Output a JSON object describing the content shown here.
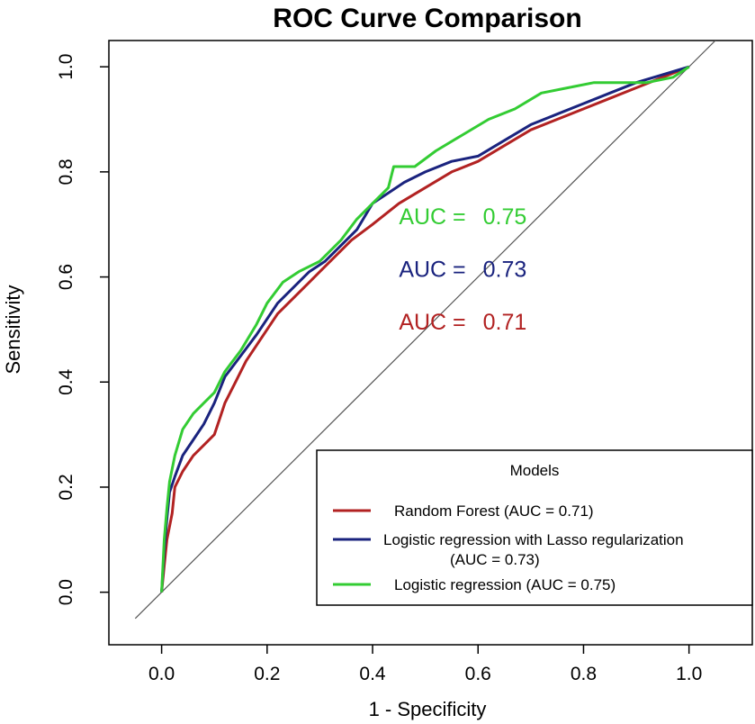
{
  "chart_data": {
    "type": "line",
    "title": "ROC Curve Comparison",
    "xlabel": "1 - Specificity",
    "ylabel": "Sensitivity",
    "xlim": [
      -0.1,
      1.12
    ],
    "ylim": [
      -0.1,
      1.05
    ],
    "xticks": [
      0.0,
      0.2,
      0.4,
      0.6,
      0.8,
      1.0
    ],
    "xtick_labels": [
      "0.0",
      "0.2",
      "0.4",
      "0.6",
      "0.8",
      "1.0"
    ],
    "yticks": [
      0.0,
      0.2,
      0.4,
      0.6,
      0.8,
      1.0
    ],
    "ytick_labels": [
      "0.0",
      "0.2",
      "0.4",
      "0.6",
      "0.8",
      "1.0"
    ],
    "grid": false,
    "reference_line": {
      "from": [
        0,
        0
      ],
      "to": [
        1,
        1
      ],
      "color": "#555555"
    },
    "series": [
      {
        "name": "Random Forest",
        "color": "#b22222",
        "points": [
          [
            0.0,
            0.0
          ],
          [
            0.005,
            0.05
          ],
          [
            0.01,
            0.1
          ],
          [
            0.02,
            0.15
          ],
          [
            0.025,
            0.2
          ],
          [
            0.04,
            0.23
          ],
          [
            0.06,
            0.26
          ],
          [
            0.08,
            0.28
          ],
          [
            0.1,
            0.3
          ],
          [
            0.11,
            0.33
          ],
          [
            0.12,
            0.36
          ],
          [
            0.14,
            0.4
          ],
          [
            0.16,
            0.44
          ],
          [
            0.18,
            0.47
          ],
          [
            0.2,
            0.5
          ],
          [
            0.22,
            0.53
          ],
          [
            0.25,
            0.56
          ],
          [
            0.28,
            0.59
          ],
          [
            0.3,
            0.61
          ],
          [
            0.33,
            0.64
          ],
          [
            0.36,
            0.67
          ],
          [
            0.4,
            0.7
          ],
          [
            0.45,
            0.74
          ],
          [
            0.5,
            0.77
          ],
          [
            0.55,
            0.8
          ],
          [
            0.6,
            0.82
          ],
          [
            0.65,
            0.85
          ],
          [
            0.7,
            0.88
          ],
          [
            0.75,
            0.9
          ],
          [
            0.8,
            0.92
          ],
          [
            0.85,
            0.94
          ],
          [
            0.9,
            0.96
          ],
          [
            0.95,
            0.98
          ],
          [
            1.0,
            1.0
          ]
        ]
      },
      {
        "name": "Logistic regression with Lasso regularization",
        "color": "#1a237e",
        "points": [
          [
            0.0,
            0.0
          ],
          [
            0.005,
            0.08
          ],
          [
            0.01,
            0.14
          ],
          [
            0.015,
            0.19
          ],
          [
            0.025,
            0.22
          ],
          [
            0.04,
            0.26
          ],
          [
            0.06,
            0.29
          ],
          [
            0.08,
            0.32
          ],
          [
            0.1,
            0.36
          ],
          [
            0.12,
            0.41
          ],
          [
            0.15,
            0.45
          ],
          [
            0.18,
            0.49
          ],
          [
            0.2,
            0.52
          ],
          [
            0.22,
            0.55
          ],
          [
            0.25,
            0.58
          ],
          [
            0.28,
            0.61
          ],
          [
            0.31,
            0.63
          ],
          [
            0.34,
            0.66
          ],
          [
            0.37,
            0.69
          ],
          [
            0.4,
            0.74
          ],
          [
            0.43,
            0.76
          ],
          [
            0.46,
            0.78
          ],
          [
            0.5,
            0.8
          ],
          [
            0.55,
            0.82
          ],
          [
            0.6,
            0.83
          ],
          [
            0.65,
            0.86
          ],
          [
            0.7,
            0.89
          ],
          [
            0.75,
            0.91
          ],
          [
            0.8,
            0.93
          ],
          [
            0.85,
            0.95
          ],
          [
            0.9,
            0.97
          ],
          [
            0.95,
            0.985
          ],
          [
            1.0,
            1.0
          ]
        ]
      },
      {
        "name": "Logistic regression",
        "color": "#33cc33",
        "points": [
          [
            0.0,
            0.0
          ],
          [
            0.005,
            0.1
          ],
          [
            0.01,
            0.16
          ],
          [
            0.015,
            0.21
          ],
          [
            0.025,
            0.26
          ],
          [
            0.04,
            0.31
          ],
          [
            0.06,
            0.34
          ],
          [
            0.08,
            0.36
          ],
          [
            0.1,
            0.38
          ],
          [
            0.12,
            0.42
          ],
          [
            0.15,
            0.46
          ],
          [
            0.18,
            0.51
          ],
          [
            0.2,
            0.55
          ],
          [
            0.23,
            0.59
          ],
          [
            0.26,
            0.61
          ],
          [
            0.3,
            0.63
          ],
          [
            0.34,
            0.67
          ],
          [
            0.37,
            0.71
          ],
          [
            0.4,
            0.74
          ],
          [
            0.43,
            0.77
          ],
          [
            0.44,
            0.81
          ],
          [
            0.48,
            0.81
          ],
          [
            0.52,
            0.84
          ],
          [
            0.57,
            0.87
          ],
          [
            0.62,
            0.9
          ],
          [
            0.67,
            0.92
          ],
          [
            0.72,
            0.95
          ],
          [
            0.77,
            0.96
          ],
          [
            0.82,
            0.97
          ],
          [
            0.87,
            0.97
          ],
          [
            0.92,
            0.97
          ],
          [
            0.97,
            0.98
          ],
          [
            1.0,
            1.0
          ]
        ]
      }
    ],
    "annotations": [
      {
        "text_label": "AUC = ",
        "value": "0.75",
        "color": "#33cc33",
        "x": 0.45,
        "y": 0.7
      },
      {
        "text_label": "AUC = ",
        "value": "0.73",
        "color": "#1a237e",
        "x": 0.45,
        "y": 0.6
      },
      {
        "text_label": "AUC = ",
        "value": "0.71",
        "color": "#b22222",
        "x": 0.45,
        "y": 0.5
      }
    ],
    "legend": {
      "position": "bottom-right",
      "title": "Models",
      "entries": [
        {
          "lines": [
            "Random Forest   (AUC = 0.71)"
          ],
          "color": "#b22222"
        },
        {
          "lines": [
            "Logistic regression with Lasso regularization",
            "(AUC = 0.73)"
          ],
          "color": "#1a237e"
        },
        {
          "lines": [
            "Logistic regression (AUC = 0.75)"
          ],
          "color": "#33cc33"
        }
      ]
    }
  }
}
